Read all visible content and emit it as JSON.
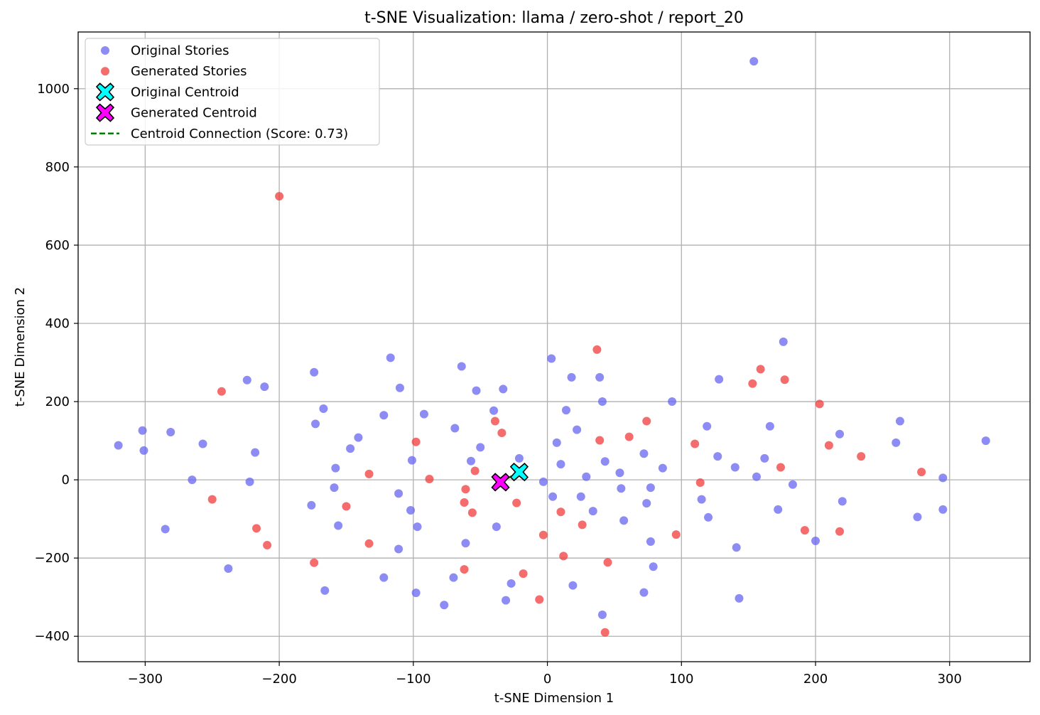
{
  "chart_data": {
    "type": "scatter",
    "title": "t-SNE Visualization: llama / zero-shot / report_20",
    "xlabel": "t-SNE Dimension 1",
    "ylabel": "t-SNE Dimension 2",
    "xlim": [
      -350,
      360
    ],
    "ylim": [
      -465,
      1145
    ],
    "xticks": [
      -300,
      -200,
      -100,
      0,
      100,
      200,
      300
    ],
    "yticks": [
      -400,
      -200,
      0,
      200,
      400,
      600,
      800,
      1000
    ],
    "xtick_labels": [
      "−300",
      "−200",
      "−100",
      "0",
      "100",
      "200",
      "300"
    ],
    "ytick_labels": [
      "−400",
      "−200",
      "0",
      "200",
      "400",
      "600",
      "800",
      "1000"
    ],
    "grid": true,
    "legend_position": "top-left",
    "legend": [
      {
        "label": "Original Stories",
        "kind": "dot",
        "color": "#6666f0"
      },
      {
        "label": "Generated Stories",
        "kind": "dot",
        "color": "#f03b3b"
      },
      {
        "label": "Original Centroid",
        "kind": "x",
        "color": "#00ffff"
      },
      {
        "label": "Generated Centroid",
        "kind": "x",
        "color": "#ff00ff"
      },
      {
        "label": "Centroid Connection (Score: 0.73)",
        "kind": "dash",
        "color": "#008000"
      }
    ],
    "series": [
      {
        "name": "Original Stories",
        "color": "#6666f0",
        "points": [
          [
            -320,
            88
          ],
          [
            -302,
            126
          ],
          [
            -301,
            75
          ],
          [
            -281,
            122
          ],
          [
            -285,
            -126
          ],
          [
            -265,
            0
          ],
          [
            -257,
            92
          ],
          [
            -238,
            -227
          ],
          [
            -224,
            255
          ],
          [
            -222,
            -5
          ],
          [
            -218,
            70
          ],
          [
            -211,
            238
          ],
          [
            -174,
            275
          ],
          [
            -173,
            143
          ],
          [
            -176,
            -65
          ],
          [
            -167,
            182
          ],
          [
            -166,
            -283
          ],
          [
            -158,
            30
          ],
          [
            -159,
            -20
          ],
          [
            -156,
            -117
          ],
          [
            -147,
            80
          ],
          [
            -141,
            108
          ],
          [
            -117,
            312
          ],
          [
            -110,
            235
          ],
          [
            -122,
            165
          ],
          [
            -122,
            -250
          ],
          [
            -111,
            -35
          ],
          [
            -111,
            -177
          ],
          [
            -101,
            50
          ],
          [
            -102,
            -78
          ],
          [
            -98,
            -289
          ],
          [
            -97,
            -120
          ],
          [
            -92,
            168
          ],
          [
            -77,
            -320
          ],
          [
            -69,
            132
          ],
          [
            -70,
            -250
          ],
          [
            -64,
            290
          ],
          [
            -61,
            -162
          ],
          [
            -57,
            48
          ],
          [
            -53,
            228
          ],
          [
            -50,
            83
          ],
          [
            -40,
            177
          ],
          [
            -38,
            -120
          ],
          [
            -33,
            232
          ],
          [
            -31,
            -308
          ],
          [
            -27,
            -265
          ],
          [
            -21,
            55
          ],
          [
            -3,
            -5
          ],
          [
            3,
            310
          ],
          [
            4,
            -43
          ],
          [
            7,
            95
          ],
          [
            10,
            40
          ],
          [
            14,
            178
          ],
          [
            18,
            262
          ],
          [
            19,
            -270
          ],
          [
            22,
            128
          ],
          [
            25,
            -43
          ],
          [
            29,
            8
          ],
          [
            34,
            -80
          ],
          [
            39,
            262
          ],
          [
            41,
            200
          ],
          [
            41,
            -345
          ],
          [
            43,
            47
          ],
          [
            54,
            18
          ],
          [
            55,
            -22
          ],
          [
            57,
            -104
          ],
          [
            72,
            67
          ],
          [
            72,
            -288
          ],
          [
            74,
            -60
          ],
          [
            77,
            -20
          ],
          [
            77,
            -158
          ],
          [
            79,
            -222
          ],
          [
            86,
            30
          ],
          [
            93,
            200
          ],
          [
            115,
            -50
          ],
          [
            119,
            137
          ],
          [
            120,
            -96
          ],
          [
            128,
            257
          ],
          [
            127,
            60
          ],
          [
            140,
            32
          ],
          [
            141,
            -173
          ],
          [
            143,
            -303
          ],
          [
            154,
            1070
          ],
          [
            156,
            8
          ],
          [
            162,
            55
          ],
          [
            166,
            137
          ],
          [
            172,
            -76
          ],
          [
            176,
            353
          ],
          [
            183,
            -12
          ],
          [
            200,
            -156
          ],
          [
            218,
            117
          ],
          [
            220,
            -55
          ],
          [
            260,
            95
          ],
          [
            263,
            150
          ],
          [
            276,
            -95
          ],
          [
            295,
            5
          ],
          [
            295,
            -76
          ],
          [
            327,
            100
          ]
        ]
      },
      {
        "name": "Generated Stories",
        "color": "#f03b3b",
        "points": [
          [
            -243,
            226
          ],
          [
            -250,
            -50
          ],
          [
            -217,
            -124
          ],
          [
            -209,
            -167
          ],
          [
            -200,
            725
          ],
          [
            -174,
            -212
          ],
          [
            -150,
            -68
          ],
          [
            -133,
            15
          ],
          [
            -133,
            -163
          ],
          [
            -98,
            97
          ],
          [
            -88,
            2
          ],
          [
            -61,
            -24
          ],
          [
            -62,
            -58
          ],
          [
            -62,
            -229
          ],
          [
            -56,
            -84
          ],
          [
            -54,
            23
          ],
          [
            -39,
            150
          ],
          [
            -34,
            120
          ],
          [
            -23,
            -59
          ],
          [
            -18,
            -240
          ],
          [
            -6,
            -306
          ],
          [
            -3,
            -141
          ],
          [
            10,
            -82
          ],
          [
            12,
            -195
          ],
          [
            26,
            -115
          ],
          [
            37,
            333
          ],
          [
            39,
            101
          ],
          [
            43,
            -390
          ],
          [
            45,
            -211
          ],
          [
            61,
            110
          ],
          [
            74,
            150
          ],
          [
            96,
            -140
          ],
          [
            110,
            92
          ],
          [
            114,
            -7
          ],
          [
            153,
            246
          ],
          [
            159,
            283
          ],
          [
            174,
            32
          ],
          [
            177,
            256
          ],
          [
            192,
            -129
          ],
          [
            203,
            194
          ],
          [
            210,
            88
          ],
          [
            218,
            -132
          ],
          [
            234,
            60
          ],
          [
            279,
            20
          ]
        ]
      }
    ],
    "original_centroid": [
      -21,
      20
    ],
    "generated_centroid": [
      -35,
      -6
    ],
    "centroid_connection_score": 0.73
  }
}
